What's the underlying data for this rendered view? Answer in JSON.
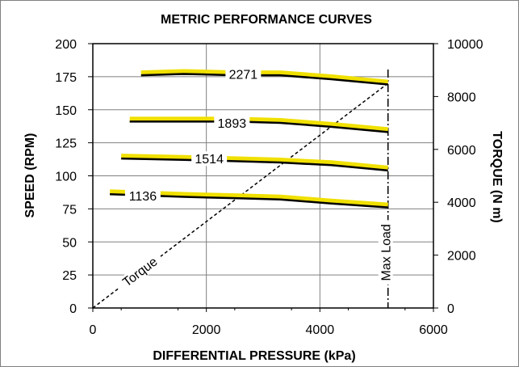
{
  "chart_data": {
    "type": "line",
    "title": "METRIC PERFORMANCE CURVES",
    "xlabel": "DIFFERENTIAL PRESSURE (kPa)",
    "ylabel": "SPEED (RPM)",
    "y2label": "TORQUE (N m)",
    "xlim": [
      0,
      6000
    ],
    "ylim": [
      0,
      200
    ],
    "y2lim": [
      0,
      10000
    ],
    "xticks": [
      "0",
      "2000",
      "4000",
      "6000"
    ],
    "yticks": [
      "0",
      "25",
      "50",
      "75",
      "100",
      "125",
      "150",
      "175",
      "200"
    ],
    "y2ticks": [
      "0",
      "2000",
      "4000",
      "6000",
      "8000",
      "10000"
    ],
    "grid": true,
    "series": [
      {
        "name": "2271",
        "x": [
          850,
          1600,
          2500,
          3300,
          4200,
          5200
        ],
        "y": [
          177,
          178,
          177,
          177,
          174,
          170
        ]
      },
      {
        "name": "1893",
        "x": [
          650,
          1600,
          2500,
          3300,
          4200,
          5200
        ],
        "y": [
          142,
          142,
          142,
          141,
          138,
          134
        ]
      },
      {
        "name": "1514",
        "x": [
          500,
          1600,
          2500,
          3300,
          4200,
          5200
        ],
        "y": [
          114,
          113,
          112,
          111,
          109,
          105
        ]
      },
      {
        "name": "1136",
        "x": [
          300,
          1600,
          2500,
          3300,
          4200,
          5200
        ],
        "y": [
          87,
          85,
          84,
          83,
          80,
          77
        ]
      }
    ],
    "torque_line": {
      "name": "Torque",
      "x": [
        0,
        5200
      ],
      "y2": [
        0,
        8500
      ]
    },
    "max_load": {
      "name": "Max Load",
      "x": 5200
    },
    "colors": {
      "curve": "#000000",
      "highlight": "#f0e000",
      "grid": "#808080"
    }
  }
}
